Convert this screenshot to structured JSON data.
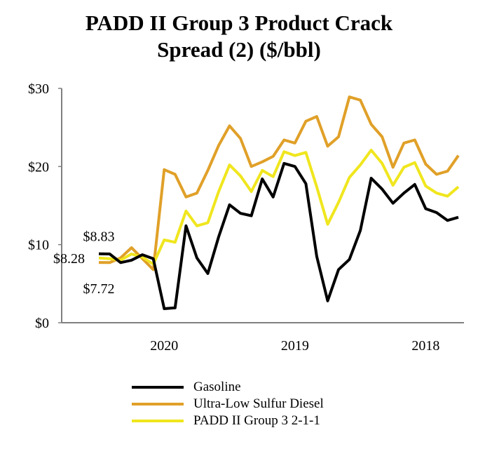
{
  "chart_data": {
    "type": "line",
    "title": [
      "PADD II Group 3 Product Crack",
      "Spread (2) ($/bbl)"
    ],
    "xlabel": "",
    "ylabel": "",
    "ylim": [
      0,
      30
    ],
    "yticks": [
      0,
      10,
      20,
      30
    ],
    "ytick_labels": [
      "$0",
      "$10",
      "$20",
      "$30"
    ],
    "x_category_labels": [
      {
        "label": "2020",
        "index": 6
      },
      {
        "label": "2019",
        "index": 18
      },
      {
        "label": "2018",
        "index": 30
      }
    ],
    "grid": false,
    "legend_position": "bottom",
    "series": [
      {
        "name": "Gasoline",
        "color": "#000000",
        "values": [
          8.83,
          8.8,
          7.7,
          8.0,
          8.7,
          8.2,
          1.8,
          1.9,
          12.4,
          8.3,
          6.3,
          11.0,
          15.1,
          14.0,
          13.7,
          18.4,
          16.1,
          20.4,
          20.0,
          17.8,
          8.5,
          2.8,
          6.8,
          8.1,
          11.8,
          18.5,
          17.1,
          15.3,
          16.6,
          17.7,
          14.6,
          14.1,
          13.1,
          13.5
        ]
      },
      {
        "name": "Ultra-Low Sulfur Diesel",
        "color": "#e0a028",
        "values": [
          7.72,
          7.7,
          8.3,
          9.6,
          8.2,
          6.8,
          19.6,
          19.0,
          16.1,
          16.6,
          19.5,
          22.7,
          25.2,
          23.6,
          20.0,
          20.6,
          21.3,
          23.4,
          23.0,
          25.8,
          26.4,
          22.6,
          23.8,
          28.9,
          28.5,
          25.4,
          23.8,
          19.9,
          23.0,
          23.4,
          20.3,
          19.0,
          19.4,
          21.4
        ]
      },
      {
        "name": "PADD II Group 3 2-1-1",
        "color": "#f0e61e",
        "values": [
          8.28,
          8.2,
          8.0,
          8.8,
          8.4,
          7.5,
          10.6,
          10.3,
          14.3,
          12.4,
          12.8,
          16.8,
          20.2,
          18.8,
          16.8,
          19.5,
          18.7,
          21.9,
          21.4,
          21.8,
          17.4,
          12.6,
          15.4,
          18.6,
          20.2,
          22.1,
          20.4,
          17.6,
          19.9,
          20.5,
          17.5,
          16.6,
          16.2,
          17.4
        ]
      }
    ],
    "annotations": [
      {
        "text": "$8.83",
        "series": "Gasoline",
        "index": 0
      },
      {
        "text": "$8.28",
        "series": "PADD II Group 3 2-1-1",
        "index": 0
      },
      {
        "text": "$7.72",
        "series": "Ultra-Low Sulfur Diesel",
        "index": 0
      }
    ]
  }
}
